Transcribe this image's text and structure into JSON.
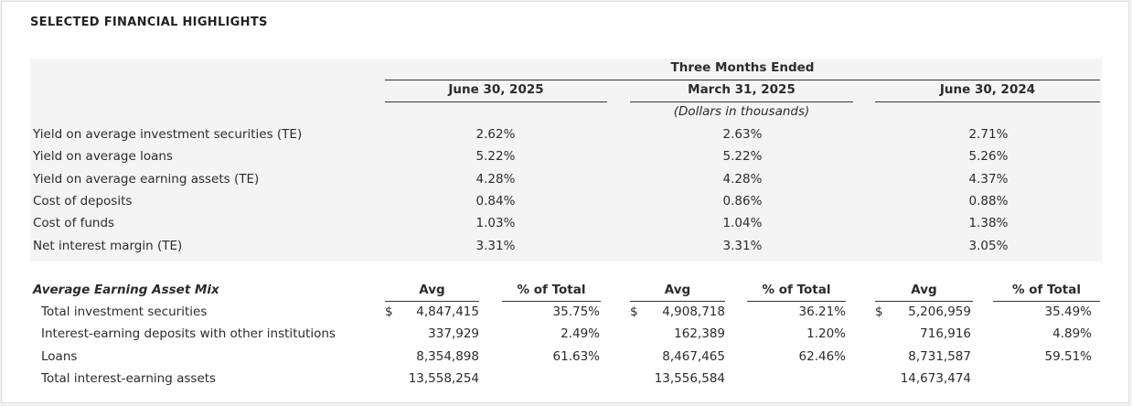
{
  "title": "SELECTED FINANCIAL HIGHLIGHTS",
  "header": {
    "group_label": "Three Months Ended",
    "columns": [
      "June 30, 2025",
      "March 31, 2025",
      "June 30, 2024"
    ],
    "units_note": "(Dollars in thousands)"
  },
  "ratios": [
    {
      "label": "Yield on average investment securities (TE)",
      "values": [
        "2.62%",
        "2.63%",
        "2.71%"
      ]
    },
    {
      "label": "Yield on average loans",
      "values": [
        "5.22%",
        "5.22%",
        "5.26%"
      ]
    },
    {
      "label": "Yield on average earning assets (TE)",
      "values": [
        "4.28%",
        "4.28%",
        "4.37%"
      ]
    },
    {
      "label": "Cost of deposits",
      "values": [
        "0.84%",
        "0.86%",
        "0.88%"
      ]
    },
    {
      "label": "Cost of funds",
      "values": [
        "1.03%",
        "1.04%",
        "1.38%"
      ]
    },
    {
      "label": "Net interest margin (TE)",
      "values": [
        "3.31%",
        "3.31%",
        "3.05%"
      ]
    }
  ],
  "mix": {
    "heading": "Average Earning Asset Mix",
    "col_avg": "Avg",
    "col_pct": "% of Total",
    "currency": "$",
    "rows": [
      {
        "label": "Total investment securities",
        "avg": [
          "4,847,415",
          "4,908,718",
          "5,206,959"
        ],
        "pct": [
          "35.75%",
          "36.21%",
          "35.49%"
        ],
        "dollar": true
      },
      {
        "label": "Interest-earning deposits with other institutions",
        "avg": [
          "337,929",
          "162,389",
          "716,916"
        ],
        "pct": [
          "2.49%",
          "1.20%",
          "4.89%"
        ],
        "dollar": false
      },
      {
        "label": "Loans",
        "avg": [
          "8,354,898",
          "8,467,465",
          "8,731,587"
        ],
        "pct": [
          "61.63%",
          "62.46%",
          "59.51%"
        ],
        "dollar": false
      },
      {
        "label": "Total interest-earning assets",
        "avg": [
          "13,558,254",
          "13,556,584",
          "14,673,474"
        ],
        "pct": [
          "",
          "",
          ""
        ],
        "dollar": false
      }
    ]
  }
}
